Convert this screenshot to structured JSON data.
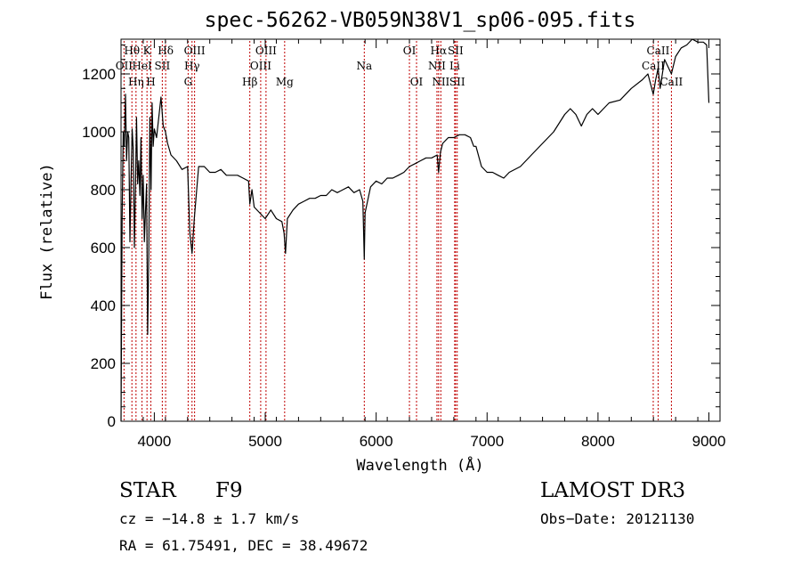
{
  "chart_data": {
    "type": "line",
    "title": "spec-56262-VB059N38V1_sp06-095.fits",
    "xlabel": "Wavelength (Å)",
    "ylabel": "Flux (relative)",
    "xlim": [
      3700,
      9100
    ],
    "ylim": [
      0,
      1320
    ],
    "xticks": [
      4000,
      5000,
      6000,
      7000,
      8000,
      9000
    ],
    "yticks": [
      0,
      200,
      400,
      600,
      800,
      1000,
      1200
    ],
    "grid": false,
    "line_color": "#000000",
    "marker_color": "#c00000",
    "series": [
      {
        "x": [
          3700,
          3710,
          3720,
          3730,
          3740,
          3750,
          3760,
          3770,
          3780,
          3790,
          3800,
          3810,
          3820,
          3830,
          3840,
          3850,
          3860,
          3870,
          3880,
          3890,
          3900,
          3910,
          3920,
          3930,
          3940,
          3950,
          3960,
          3970,
          3980,
          3990,
          4000,
          4020,
          4040,
          4060,
          4080,
          4100,
          4120,
          4150,
          4200,
          4250,
          4300,
          4320,
          4340,
          4360,
          4400,
          4450,
          4500,
          4550,
          4600,
          4650,
          4700,
          4750,
          4800,
          4850,
          4861,
          4880,
          4900,
          4950,
          5000,
          5050,
          5100,
          5150,
          5170,
          5183,
          5200,
          5250,
          5300,
          5350,
          5400,
          5450,
          5500,
          5550,
          5600,
          5650,
          5700,
          5750,
          5800,
          5850,
          5880,
          5893,
          5900,
          5950,
          6000,
          6050,
          6100,
          6150,
          6200,
          6250,
          6300,
          6350,
          6400,
          6450,
          6500,
          6550,
          6563,
          6580,
          6600,
          6650,
          6700,
          6750,
          6800,
          6850,
          6880,
          6900,
          6950,
          7000,
          7050,
          7100,
          7150,
          7200,
          7300,
          7400,
          7500,
          7600,
          7700,
          7750,
          7800,
          7850,
          7900,
          7950,
          8000,
          8050,
          8100,
          8200,
          8300,
          8400,
          8450,
          8498,
          8520,
          8542,
          8560,
          8600,
          8662,
          8700,
          8750,
          8800,
          8850,
          8900,
          8950,
          8980,
          9000
        ],
        "y": [
          0,
          700,
          1000,
          950,
          1130,
          900,
          1000,
          980,
          620,
          820,
          1010,
          940,
          600,
          800,
          1050,
          820,
          900,
          780,
          980,
          700,
          850,
          620,
          720,
          820,
          300,
          580,
          1050,
          800,
          1100,
          950,
          1010,
          980,
          1050,
          1120,
          1020,
          1000,
          960,
          920,
          900,
          870,
          880,
          650,
          580,
          700,
          880,
          880,
          860,
          860,
          870,
          850,
          850,
          850,
          840,
          830,
          750,
          800,
          740,
          720,
          700,
          730,
          700,
          690,
          650,
          580,
          700,
          730,
          750,
          760,
          770,
          770,
          780,
          780,
          800,
          790,
          800,
          810,
          790,
          800,
          760,
          560,
          720,
          810,
          830,
          820,
          840,
          840,
          850,
          860,
          880,
          890,
          900,
          910,
          910,
          920,
          860,
          930,
          960,
          980,
          980,
          990,
          990,
          980,
          950,
          950,
          880,
          860,
          860,
          850,
          840,
          860,
          880,
          920,
          960,
          1000,
          1060,
          1080,
          1060,
          1020,
          1060,
          1080,
          1060,
          1080,
          1100,
          1110,
          1150,
          1180,
          1200,
          1130,
          1180,
          1220,
          1150,
          1250,
          1200,
          1260,
          1290,
          1300,
          1320,
          1310,
          1310,
          1300,
          1100
        ]
      }
    ],
    "line_markers": [
      {
        "name": "Hθ",
        "wl": 3798,
        "tier": 1
      },
      {
        "name": "OII",
        "wl": 3727,
        "tier": 2
      },
      {
        "name": "Hη",
        "wl": 3835,
        "tier": 3
      },
      {
        "name": "HeI",
        "wl": 3889,
        "tier": 2
      },
      {
        "name": "K",
        "wl": 3934,
        "tier": 1
      },
      {
        "name": "H",
        "wl": 3969,
        "tier": 3
      },
      {
        "name": "SII",
        "wl": 4072,
        "tier": 2
      },
      {
        "name": "Hδ",
        "wl": 4102,
        "tier": 1
      },
      {
        "name": "OIII",
        "wl": 4363,
        "tier": 1
      },
      {
        "name": "Hγ",
        "wl": 4340,
        "tier": 2
      },
      {
        "name": "G",
        "wl": 4305,
        "tier": 3
      },
      {
        "name": "Hβ",
        "wl": 4861,
        "tier": 3
      },
      {
        "name": "OIII",
        "wl": 5007,
        "tier": 1
      },
      {
        "name": "OIII",
        "wl": 4959,
        "tier": 2
      },
      {
        "name": "Mg",
        "wl": 5175,
        "tier": 3
      },
      {
        "name": "Na",
        "wl": 5893,
        "tier": 2
      },
      {
        "name": "OI",
        "wl": 6300,
        "tier": 1
      },
      {
        "name": "OI",
        "wl": 6364,
        "tier": 3
      },
      {
        "name": "Hα",
        "wl": 6563,
        "tier": 1
      },
      {
        "name": "SII",
        "wl": 6716,
        "tier": 1
      },
      {
        "name": "NII",
        "wl": 6548,
        "tier": 2
      },
      {
        "name": "Li",
        "wl": 6708,
        "tier": 2
      },
      {
        "name": "NII",
        "wl": 6583,
        "tier": 3
      },
      {
        "name": "SII",
        "wl": 6731,
        "tier": 3
      },
      {
        "name": "CaII",
        "wl": 8542,
        "tier": 1
      },
      {
        "name": "CaII",
        "wl": 8498,
        "tier": 2
      },
      {
        "name": "CaII",
        "wl": 8662,
        "tier": 3
      }
    ]
  },
  "footer": {
    "object_class": "STAR",
    "subclass": "F9",
    "survey": "LAMOST DR3",
    "velocity": "cz = −14.8 ± 1.7 km/s",
    "obs_date": "Obs−Date: 20121130",
    "coords": "RA =  61.75491, DEC =  38.49672"
  }
}
